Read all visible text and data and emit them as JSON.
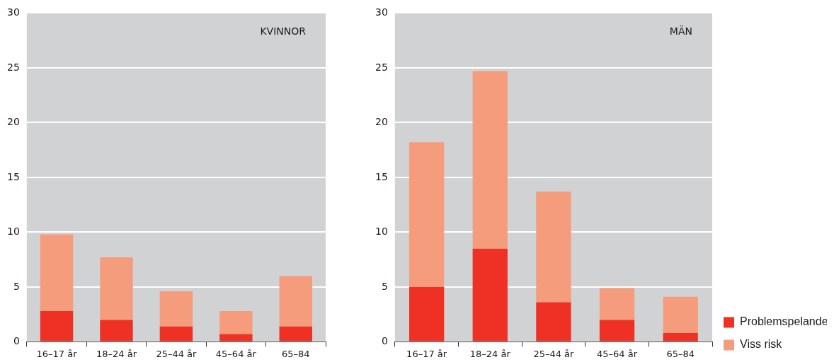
{
  "chart_data": [
    {
      "type": "bar",
      "title": "KVINNOR",
      "stacked": true,
      "grid": "y",
      "legend": false,
      "categories": [
        "16–17 år",
        "18–24 år",
        "25–44 år",
        "45–64 år",
        "65–84"
      ],
      "series": [
        {
          "color": "#ee3124",
          "values": [
            2.8,
            2.0,
            1.4,
            0.7,
            1.4
          ]
        },
        {
          "color": "#f59c7c",
          "values": [
            7.0,
            5.7,
            3.2,
            2.1,
            4.6
          ]
        }
      ],
      "ylim": [
        0,
        30
      ],
      "yticks": [
        0,
        5,
        10,
        15,
        20,
        25,
        30
      ]
    },
    {
      "type": "bar",
      "title": "MÄN",
      "stacked": true,
      "grid": "y",
      "legend": "bottom right",
      "categories": [
        "16–17 år",
        "18–24 år",
        "25–44 år",
        "45–64 år",
        "65–84"
      ],
      "series": [
        {
          "name": "Problemspelande",
          "color": "#ee3124",
          "values": [
            5.0,
            8.5,
            3.6,
            2.0,
            0.8
          ]
        },
        {
          "name": "Viss risk",
          "color": "#f59c7c",
          "values": [
            13.2,
            16.2,
            10.1,
            2.9,
            3.3
          ]
        }
      ],
      "ylim": [
        0,
        30
      ],
      "yticks": [
        0,
        5,
        10,
        15,
        20,
        25,
        30
      ]
    }
  ]
}
